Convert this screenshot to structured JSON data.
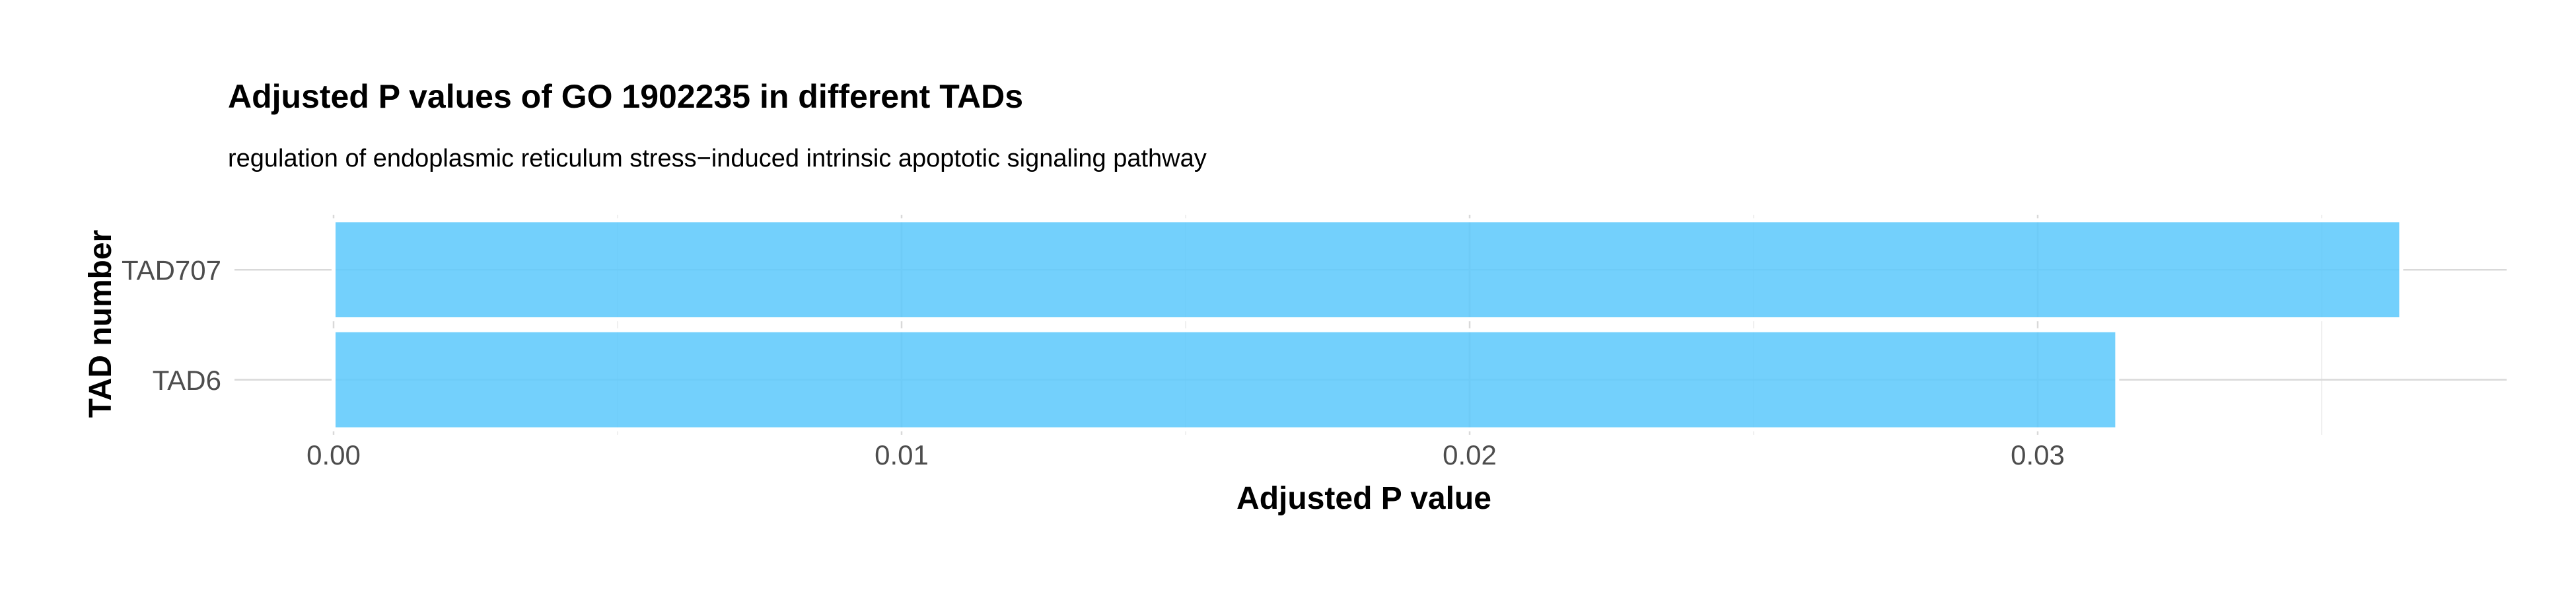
{
  "chart_data": {
    "type": "bar",
    "orientation": "horizontal",
    "title": "Adjusted P values of GO 1902235 in different TADs",
    "subtitle": "regulation of endoplasmic reticulum stress−induced intrinsic apoptotic signaling pathway",
    "xlabel": "Adjusted P value",
    "ylabel": "TAD number",
    "categories": [
      "TAD707",
      "TAD6"
    ],
    "values": [
      0.0364,
      0.0314
    ],
    "xlim": [
      0,
      0.0382
    ],
    "x_ticks": [
      0,
      0.01,
      0.02,
      0.03
    ],
    "x_tick_labels": [
      "0.00",
      "0.01",
      "0.02",
      "0.03"
    ],
    "grid": true,
    "legend": "none",
    "bar_color": "#5BC8FB"
  }
}
